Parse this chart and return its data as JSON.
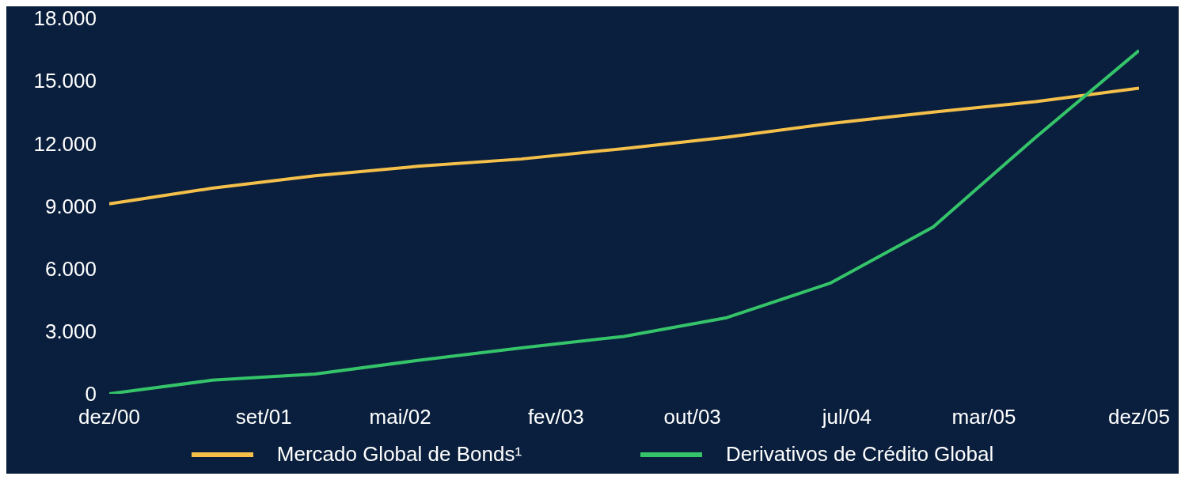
{
  "chart_data": {
    "type": "line",
    "x": [
      "2000-12",
      "2001-06",
      "2001-12",
      "2002-06",
      "2002-12",
      "2003-06",
      "2003-12",
      "2004-06",
      "2004-12",
      "2005-06",
      "2005-12"
    ],
    "series": [
      {
        "name": "Mercado Global de Bonds¹",
        "color": "#f5c04a",
        "values": [
          9100,
          9850,
          10450,
          10900,
          11250,
          11750,
          12300,
          12950,
          13500,
          14000,
          14650
        ]
      },
      {
        "name": "Derivativos de Crédito Global",
        "color": "#35c46a",
        "values": [
          0,
          650,
          950,
          1600,
          2200,
          2750,
          3650,
          5300,
          8000,
          12300,
          16450
        ]
      }
    ],
    "ylim": [
      0,
      18000
    ],
    "yticks": [
      {
        "value": 0,
        "label": "0"
      },
      {
        "value": 3000,
        "label": "3.000"
      },
      {
        "value": 6000,
        "label": "6.000"
      },
      {
        "value": 9000,
        "label": "9.000"
      },
      {
        "value": 12000,
        "label": "12.000"
      },
      {
        "value": 15000,
        "label": "15.000"
      },
      {
        "value": 18000,
        "label": "18.000"
      }
    ],
    "xlim": [
      "2000-12",
      "2005-12"
    ],
    "xticks": [
      {
        "value": "2000-12",
        "label": "dez/00"
      },
      {
        "value": "2001-09",
        "label": "set/01"
      },
      {
        "value": "2002-05",
        "label": "mai/02"
      },
      {
        "value": "2003-02",
        "label": "fev/03"
      },
      {
        "value": "2003-10",
        "label": "out/03"
      },
      {
        "value": "2004-07",
        "label": "jul/04"
      },
      {
        "value": "2005-03",
        "label": "mar/05"
      },
      {
        "value": "2005-12",
        "label": "dez/05"
      }
    ],
    "grid": false,
    "legend": "bottom",
    "marker": "none",
    "line_style": "solid"
  }
}
